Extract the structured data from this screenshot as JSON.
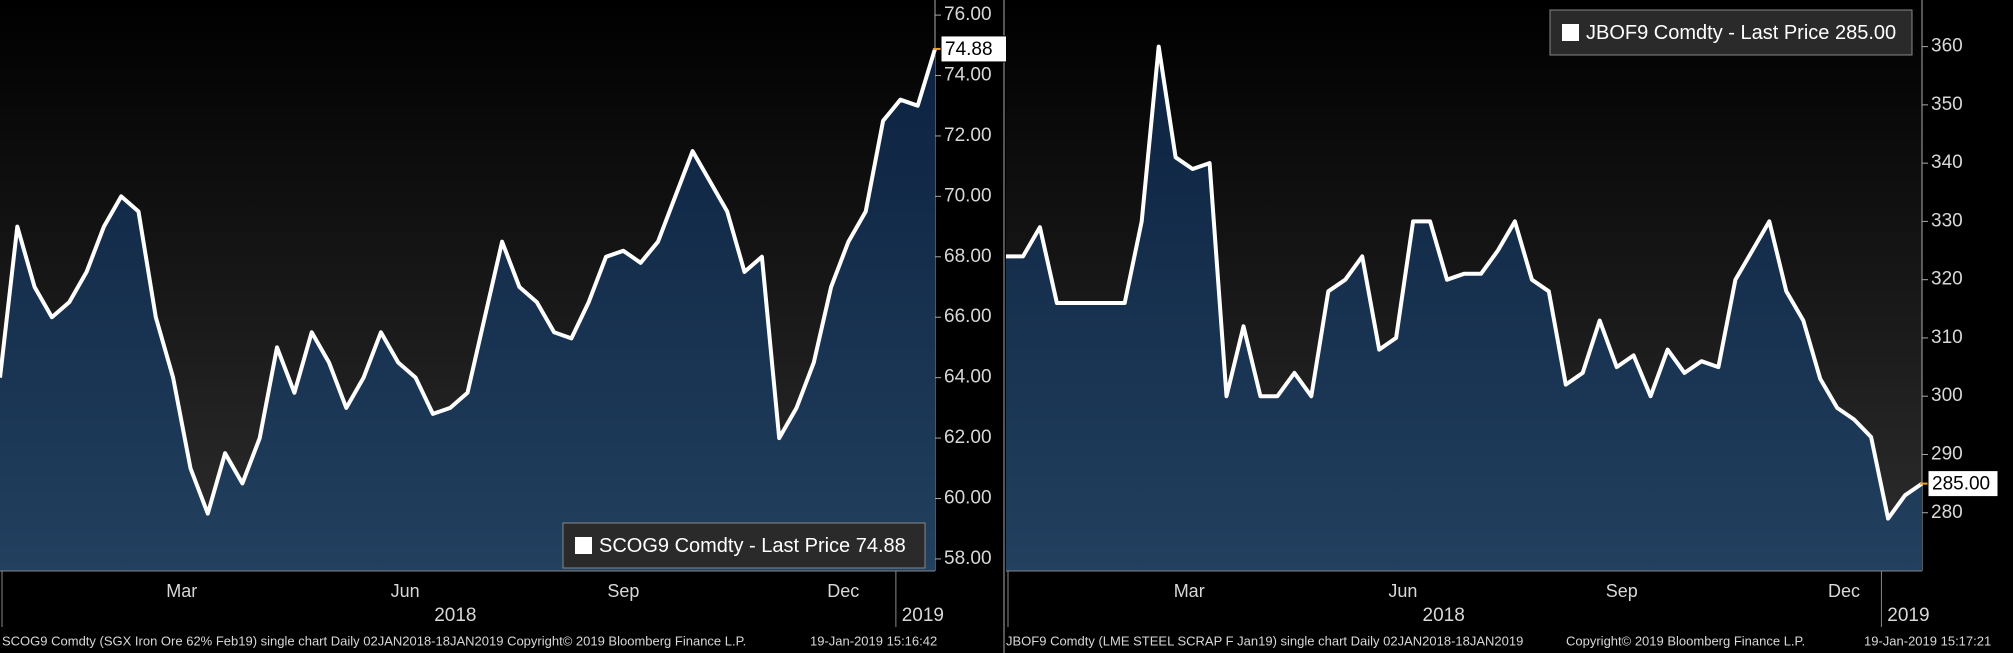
{
  "chart_data": [
    {
      "type": "area",
      "series": [
        {
          "name": "SCOG9 Comdty - Last Price 74.88",
          "color": "#ffffff",
          "values": [
            64.0,
            69.0,
            67.0,
            66.0,
            66.5,
            67.5,
            69.0,
            70.0,
            69.5,
            66.0,
            64.0,
            61.0,
            59.5,
            61.5,
            60.5,
            62.0,
            65.0,
            63.5,
            65.5,
            64.5,
            63.0,
            64.0,
            65.5,
            64.5,
            64.0,
            62.8,
            63.0,
            63.5,
            66.0,
            68.5,
            67.0,
            66.5,
            65.5,
            65.3,
            66.5,
            68.0,
            68.2,
            67.8,
            68.5,
            70.0,
            71.5,
            70.5,
            69.5,
            67.5,
            68.0,
            62.0,
            63.0,
            64.5,
            67.0,
            68.5,
            69.5,
            72.5,
            73.2,
            73.0,
            74.88
          ],
          "last_price_label": "74.88"
        }
      ],
      "xlim": [
        0,
        54
      ],
      "xticks": [
        {
          "value": 10.5,
          "label": "Mar"
        },
        {
          "value": 23.4,
          "label": "Jun"
        },
        {
          "value": 36.0,
          "label": "Sep"
        },
        {
          "value": 48.7,
          "label": "Dec"
        }
      ],
      "year_ticks": [
        {
          "value": 26.3,
          "label": "2018"
        },
        {
          "value": 53.3,
          "label": "2019"
        }
      ],
      "ylim": [
        57.6,
        76.5
      ],
      "yticks": [
        {
          "value": 58,
          "label": "58.00"
        },
        {
          "value": 60,
          "label": "60.00"
        },
        {
          "value": 62,
          "label": "62.00"
        },
        {
          "value": 64,
          "label": "64.00"
        },
        {
          "value": 66,
          "label": "66.00"
        },
        {
          "value": 68,
          "label": "68.00"
        },
        {
          "value": 70,
          "label": "70.00"
        },
        {
          "value": 72,
          "label": "72.00"
        },
        {
          "value": 74,
          "label": "74.00"
        },
        {
          "value": 76,
          "label": "76.00"
        }
      ],
      "legend": "bottom-right",
      "footer": [
        "SCOG9 Comdty (SGX Iron Ore 62% Feb19) single chart Daily 02JAN2018-18JAN2019 Copyright© 2019 Bloomberg Finance L.P.",
        "19-Jan-2019 15:16:42"
      ]
    },
    {
      "type": "area",
      "series": [
        {
          "name": "JBOF9 Comdty - Last Price 285.00",
          "color": "#ffffff",
          "values": [
            324,
            324,
            329,
            316,
            316,
            316,
            316,
            316,
            330,
            360,
            341,
            339,
            340,
            300,
            312,
            300,
            300,
            304,
            300,
            318,
            320,
            324,
            308,
            310,
            330,
            330,
            320,
            321,
            321,
            325,
            330,
            320,
            318,
            302,
            304,
            313,
            305,
            307,
            300,
            308,
            304,
            306,
            305,
            320,
            325,
            330,
            318,
            313,
            303,
            298,
            296,
            293,
            279,
            283,
            285
          ],
          "last_price_label": "285.00"
        }
      ],
      "xlim": [
        0,
        54
      ],
      "xticks": [
        {
          "value": 10.8,
          "label": "Mar"
        },
        {
          "value": 23.4,
          "label": "Jun"
        },
        {
          "value": 36.3,
          "label": "Sep"
        },
        {
          "value": 49.4,
          "label": "Dec"
        }
      ],
      "year_ticks": [
        {
          "value": 25.8,
          "label": "2018"
        },
        {
          "value": 53.2,
          "label": "2019"
        }
      ],
      "ylim": [
        270,
        368
      ],
      "yticks": [
        280,
        290,
        300,
        310,
        320,
        330,
        340,
        350,
        360
      ],
      "legend": "top-right",
      "footer": [
        "JBOF9 Comdty (LME STEEL SCRAP F Jan19) single chart Daily 02JAN2018-18JAN2019",
        "Copyright© 2019 Bloomberg Finance L.P.",
        "19-Jan-2019 15:17:21"
      ]
    }
  ]
}
